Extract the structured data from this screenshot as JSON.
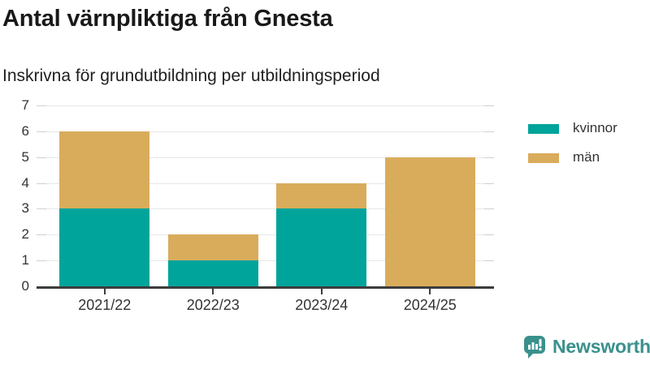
{
  "header": {
    "title": "Antal värnpliktiga från Gnesta",
    "subtitle": "Inskrivna för grundutbildning per utbildningsperiod"
  },
  "chart_data": {
    "type": "bar",
    "stacked": true,
    "title": "Antal värnpliktiga från Gnesta",
    "subtitle": "Inskrivna för grundutbildning per utbildningsperiod",
    "categories": [
      "2021/22",
      "2022/23",
      "2023/24",
      "2024/25"
    ],
    "series": [
      {
        "name": "kvinnor",
        "color": "#00A49A",
        "values": [
          3,
          1,
          3,
          0
        ]
      },
      {
        "name": "män",
        "color": "#D9AC5C",
        "values": [
          3,
          1,
          1,
          5
        ]
      }
    ],
    "totals": [
      6,
      2,
      4,
      5
    ],
    "xlabel": "",
    "ylabel": "",
    "ylim": [
      0,
      7
    ],
    "yticks": [
      0,
      1,
      2,
      3,
      4,
      5,
      6,
      7
    ],
    "grid": true,
    "legend_position": "right"
  },
  "branding": {
    "logo_text": "Newsworthy",
    "logo_icon": "newsworthy-speech-bubble-chart-icon",
    "brand_color": "#3A908C"
  }
}
